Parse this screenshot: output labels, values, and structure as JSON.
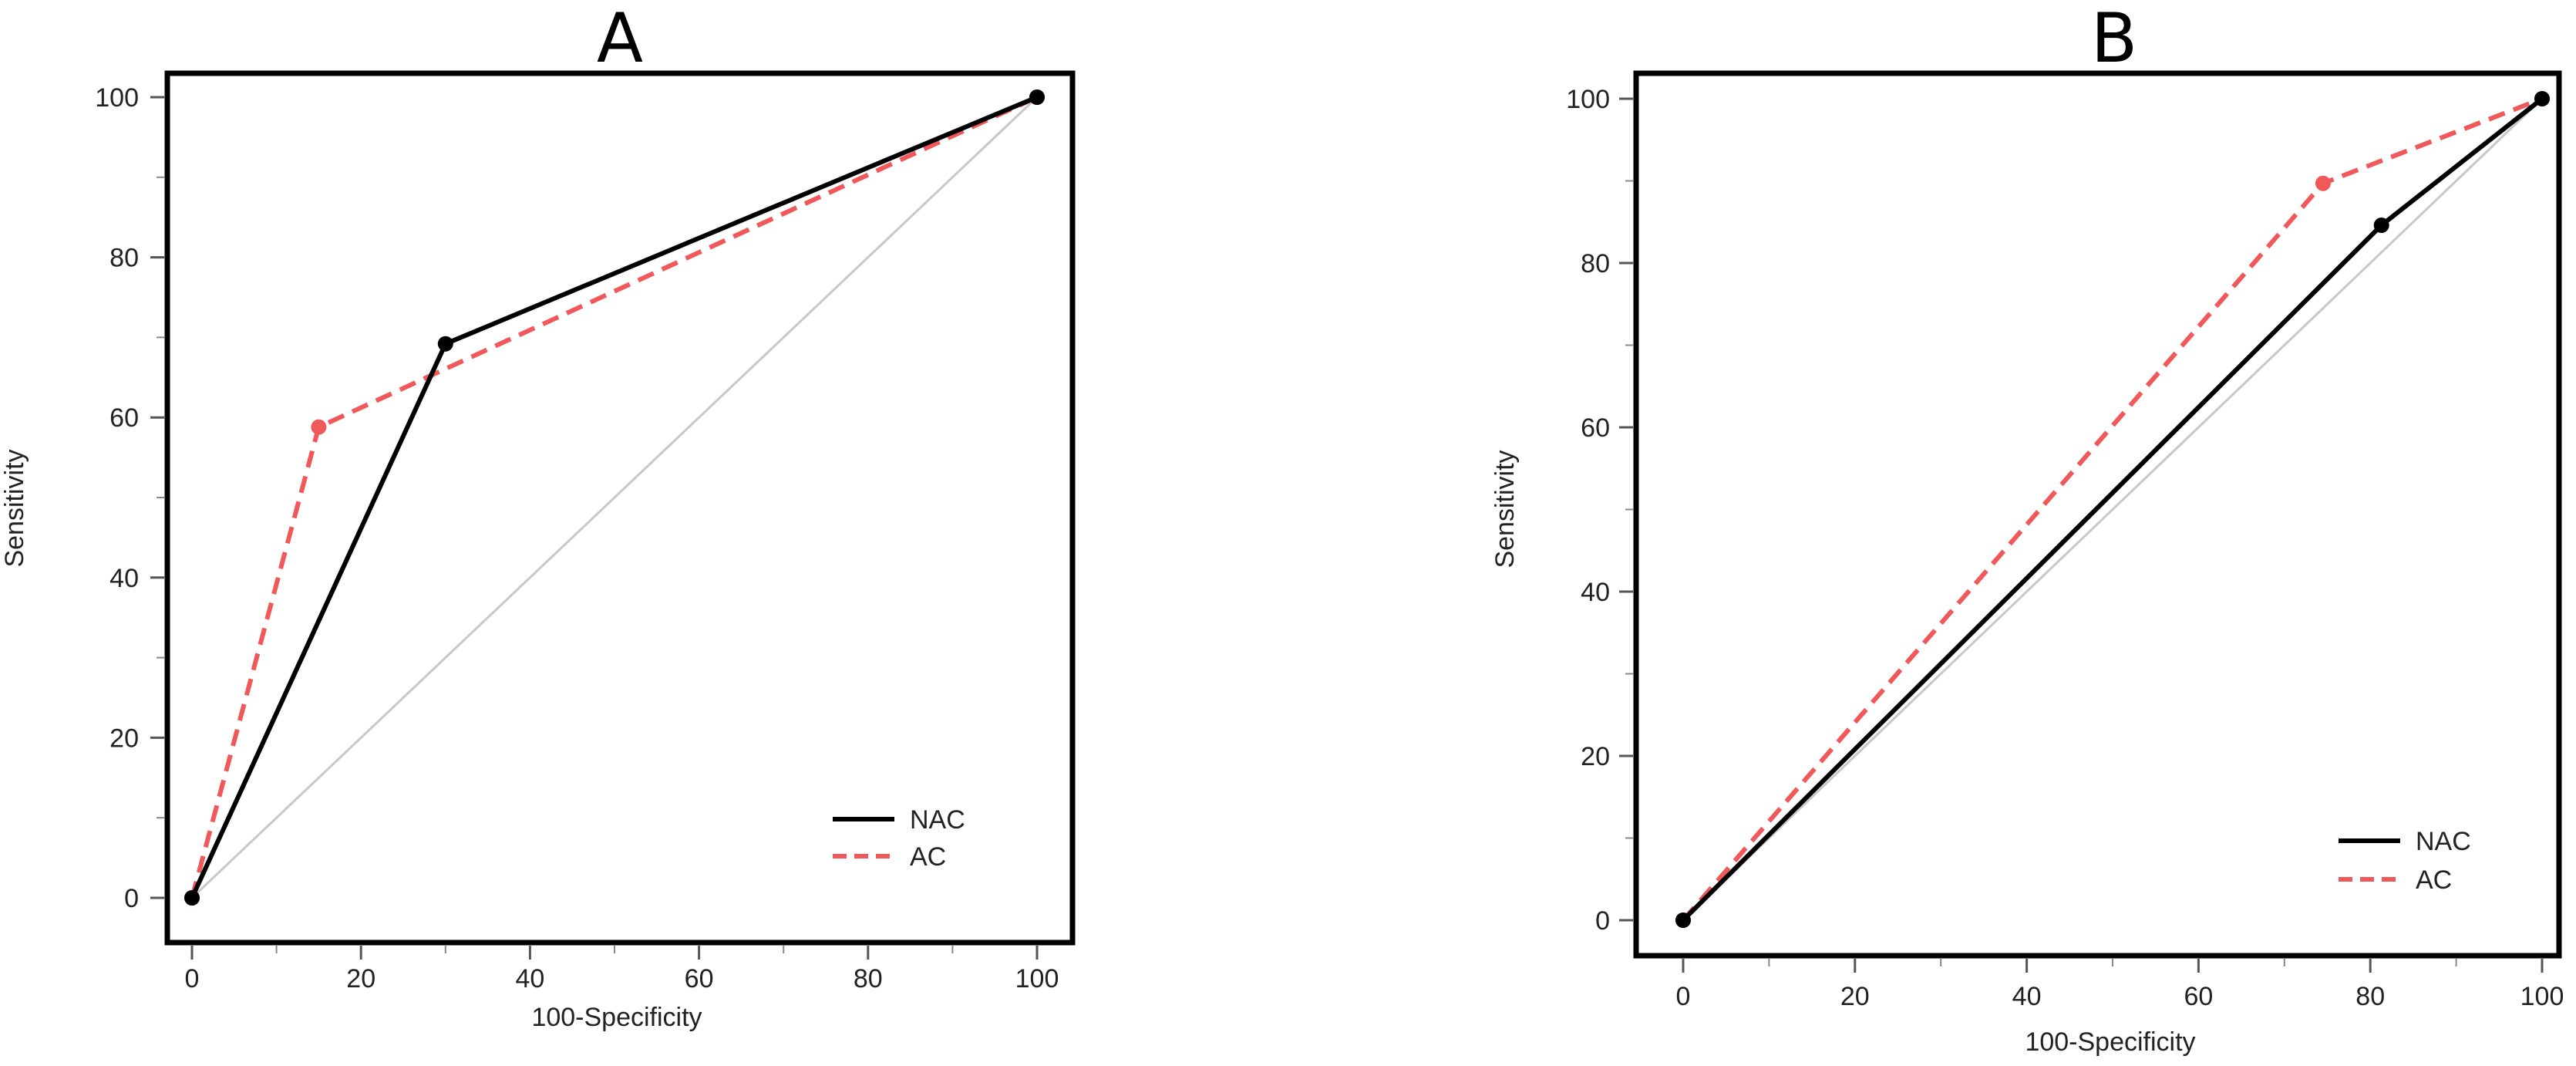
{
  "chart_data": [
    {
      "type": "line",
      "title": "A",
      "xlabel": "100-Specificity",
      "ylabel": "Sensitivity",
      "xlim": [
        0,
        100
      ],
      "ylim": [
        0,
        100
      ],
      "xticks": [
        0,
        20,
        40,
        60,
        80,
        100
      ],
      "yticks": [
        0,
        20,
        40,
        60,
        80,
        100
      ],
      "grid": false,
      "legend_position": "bottom-right",
      "reference_line": {
        "x": [
          0,
          100
        ],
        "y": [
          0,
          100
        ],
        "color": "#c8c8c8"
      },
      "series": [
        {
          "name": "NAC",
          "style": "solid",
          "color": "#000000",
          "x": [
            0,
            30,
            100
          ],
          "y": [
            0,
            69.2,
            100
          ]
        },
        {
          "name": "AC",
          "style": "dashed",
          "color": "#f0585a",
          "x": [
            0,
            15,
            100
          ],
          "y": [
            0,
            58.8,
            100
          ]
        }
      ]
    },
    {
      "type": "line",
      "title": "B",
      "xlabel": "100-Specificity",
      "ylabel": "Sensitivity",
      "xlim": [
        0,
        100
      ],
      "ylim": [
        0,
        100
      ],
      "xticks": [
        0,
        20,
        40,
        60,
        80,
        100
      ],
      "yticks": [
        0,
        20,
        40,
        60,
        80,
        100
      ],
      "grid": false,
      "legend_position": "bottom-right",
      "reference_line": {
        "x": [
          0,
          100
        ],
        "y": [
          0,
          100
        ],
        "color": "#c8c8c8"
      },
      "series": [
        {
          "name": "NAC",
          "style": "solid",
          "color": "#000000",
          "x": [
            0,
            81.3,
            100
          ],
          "y": [
            0,
            84.6,
            100
          ]
        },
        {
          "name": "AC",
          "style": "dashed",
          "color": "#f0585a",
          "x": [
            0,
            74.5,
            100
          ],
          "y": [
            0,
            89.7,
            100
          ]
        }
      ]
    }
  ]
}
